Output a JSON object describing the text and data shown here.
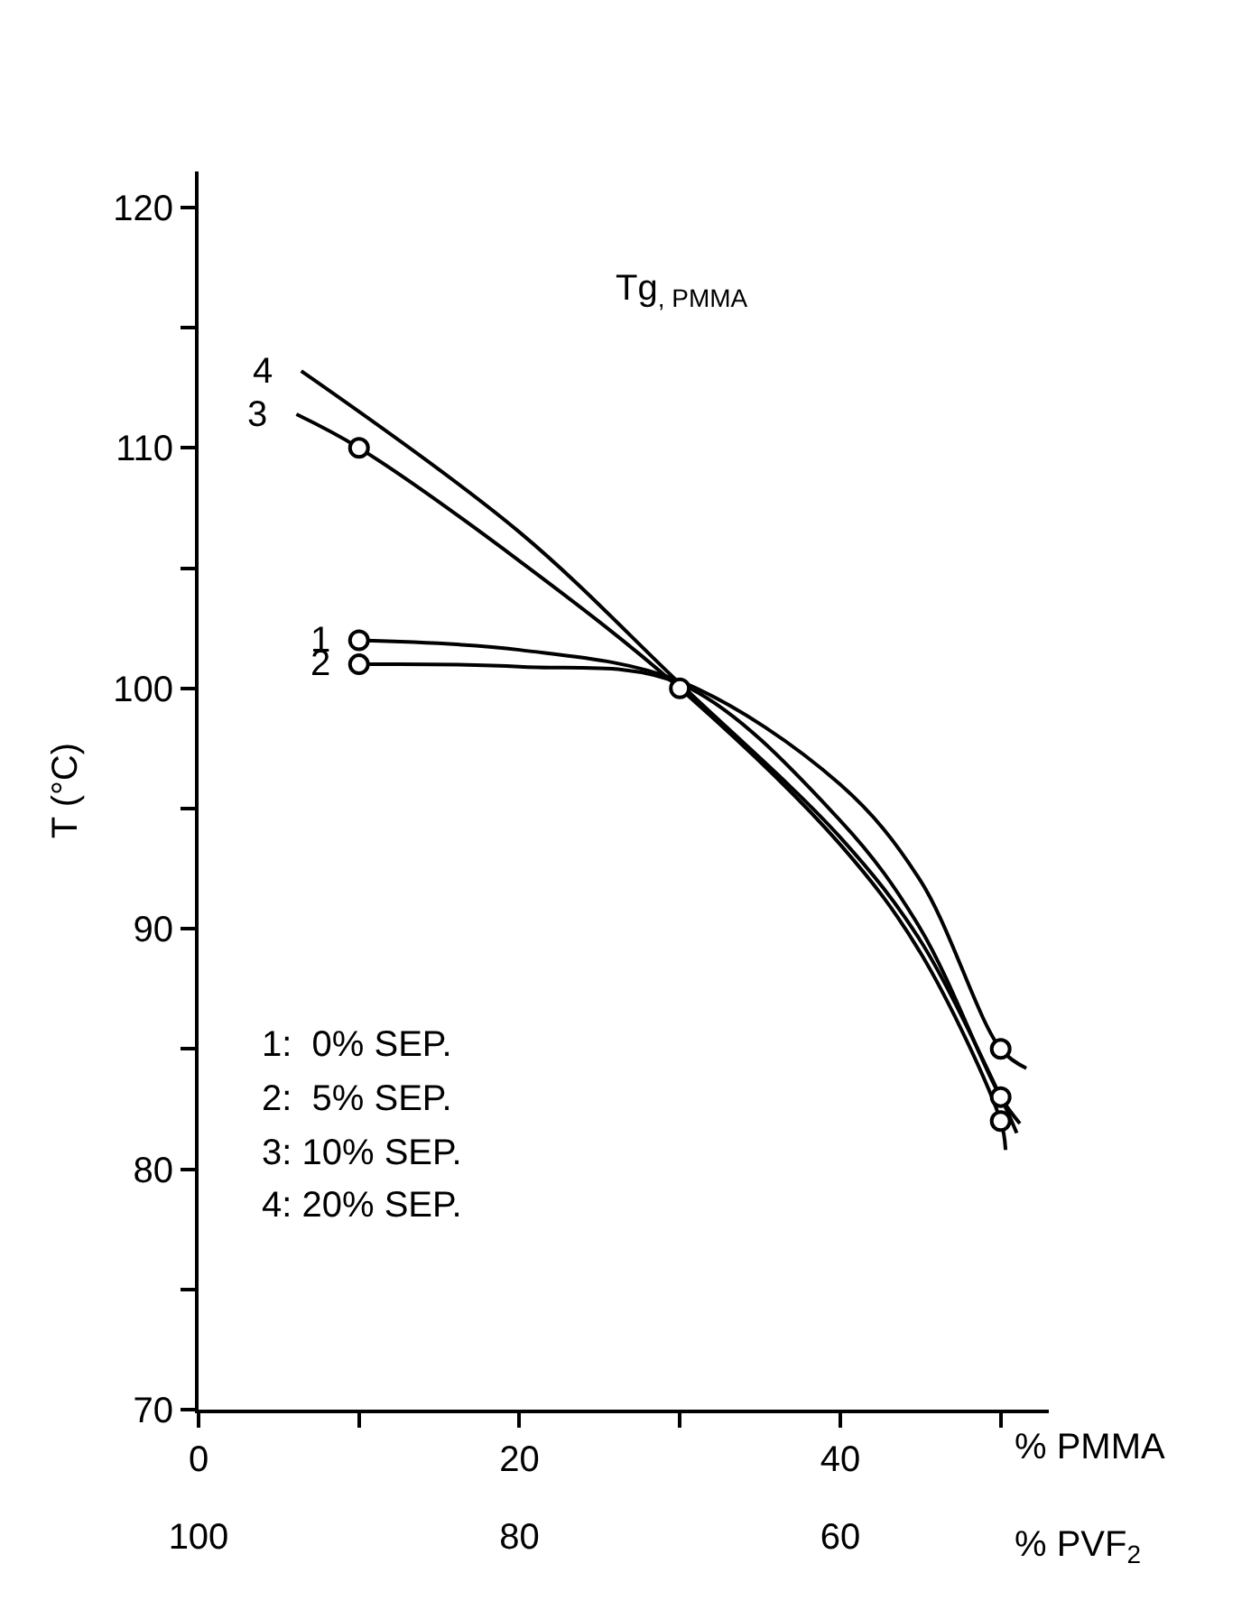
{
  "chart_data": {
    "type": "line",
    "title": "Tg$_{, PMMA}$",
    "xlabel": "% PMMA",
    "x2label": "% PVF$_{2}$",
    "ylabel": "T (°C)",
    "series": [
      {
        "name": "1",
        "color": "#000000",
        "x": [
          10,
          20,
          30,
          40,
          45,
          50,
          51.6
        ],
        "values": [
          102,
          101.6,
          100.3,
          96,
          92,
          85,
          84.2
        ]
      },
      {
        "name": "2",
        "color": "#000000",
        "x": [
          10,
          20,
          30,
          40,
          45,
          50,
          51.2
        ],
        "values": [
          101,
          100.9,
          100.2,
          94.5,
          90,
          83,
          81.9
        ]
      },
      {
        "name": "3",
        "color": "#000000",
        "x": [
          6.1,
          10,
          20,
          30,
          40,
          45,
          50,
          50.3
        ],
        "values": [
          111.4,
          110,
          105.3,
          100,
          93.5,
          89,
          82,
          80.8
        ]
      },
      {
        "name": "4",
        "color": "#000000",
        "x": [
          6.4,
          20,
          30,
          40,
          45,
          50,
          51
        ],
        "values": [
          113.2,
          106.5,
          100.2,
          93.8,
          89.5,
          83,
          81.5
        ]
      },
      {
        "type": "scatter",
        "color": "#000000",
        "marker": "circle",
        "x": [
          10,
          10,
          10,
          30,
          50,
          50,
          50
        ],
        "values": [
          102,
          101,
          110,
          100,
          85,
          83,
          82
        ]
      }
    ],
    "xlim": [
      0,
      53
    ],
    "x2lim": [
      100,
      47
    ],
    "ylim": [
      70,
      121.5
    ],
    "xticks": [
      0,
      {
        "value": 10,
        "label": null
      },
      20,
      {
        "value": 30,
        "label": null
      },
      40,
      {
        "value": 50,
        "label": null
      }
    ],
    "x2ticks": [
      100,
      80,
      60
    ],
    "yticks": [
      70,
      {
        "value": 75,
        "label": null
      },
      80,
      {
        "value": 85,
        "label": null
      },
      90,
      {
        "value": 95,
        "label": null
      },
      100,
      {
        "value": 105,
        "label": null
      },
      110,
      {
        "value": 115,
        "label": null
      },
      120
    ],
    "annotations": [
      "1:  0% SEP.",
      "2:  5% SEP.",
      "3: 10% SEP.",
      "4: 20% SEP."
    ],
    "legend": false,
    "marker": "none",
    "line_style": "solid"
  }
}
